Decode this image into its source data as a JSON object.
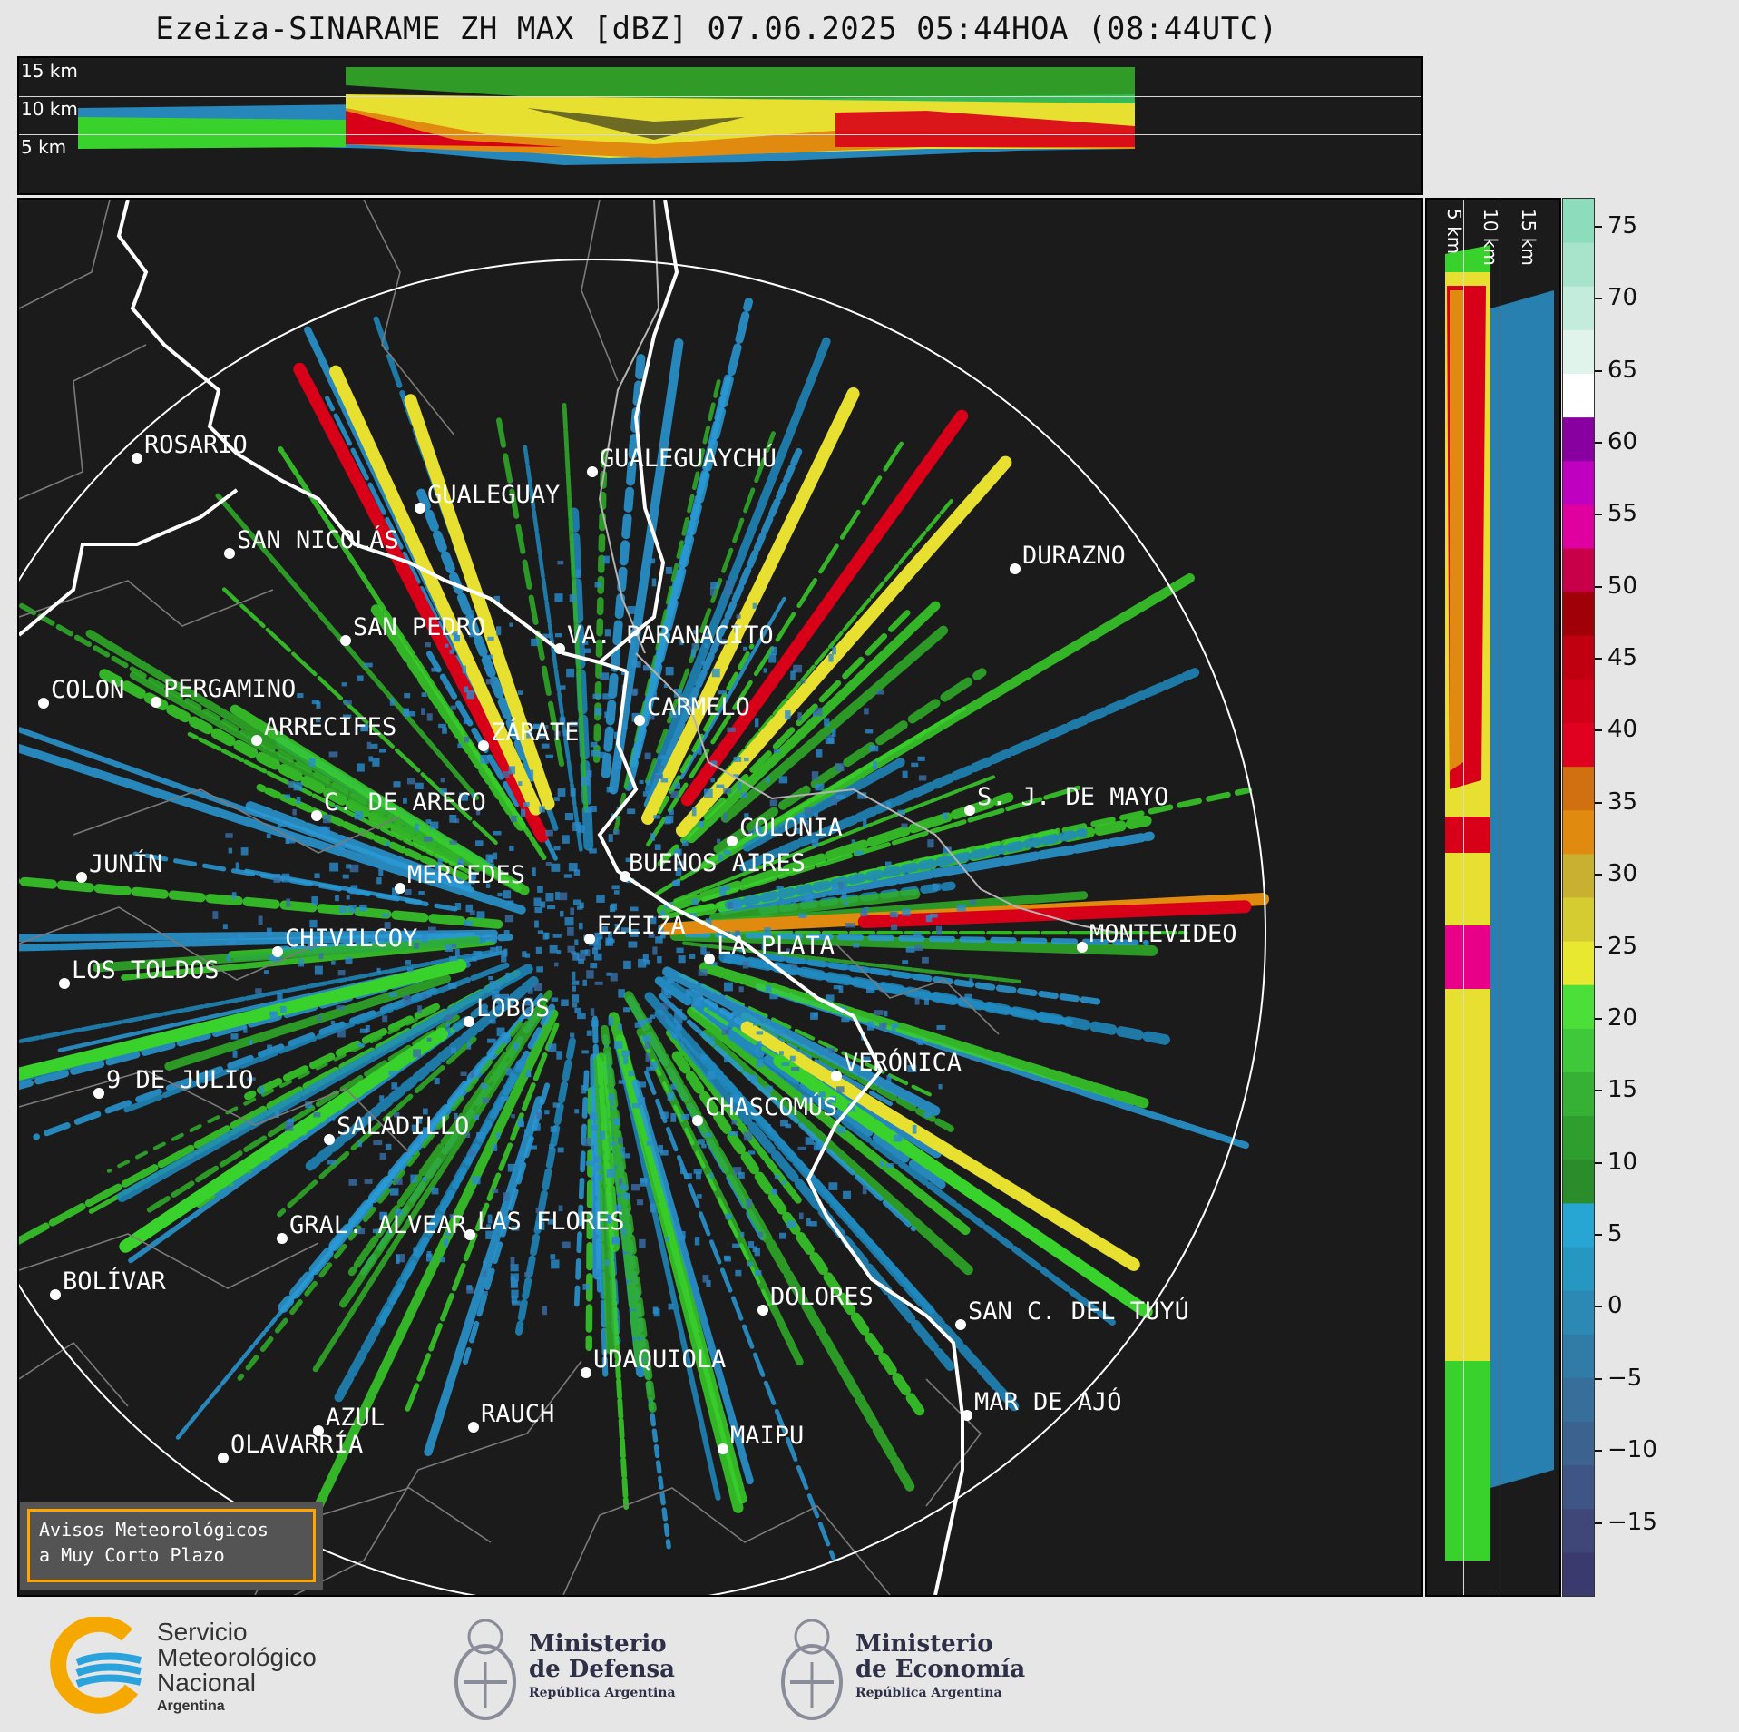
{
  "header": {
    "title": "Ezeiza-SINARAME ZH MAX [dBZ] 07.06.2025 05:44HOA (08:44UTC)"
  },
  "top_panel": {
    "altitude_labels": [
      "15 km",
      "10 km",
      "5 km"
    ]
  },
  "side_panel": {
    "altitude_labels": [
      "5 km",
      "10 km",
      "15 km"
    ]
  },
  "colorbar": {
    "ticks": [
      "75",
      "70",
      "65",
      "60",
      "55",
      "50",
      "45",
      "40",
      "35",
      "30",
      "25",
      "20",
      "15",
      "10",
      "5",
      "0",
      "−5",
      "−10",
      "−15"
    ],
    "range": [
      -20,
      77
    ]
  },
  "map": {
    "cities": [
      {
        "name": "ROSARIO"
      },
      {
        "name": "GUALEGUAYCHÚ"
      },
      {
        "name": "GUALEGUAY"
      },
      {
        "name": "SAN NICOLÁS"
      },
      {
        "name": "DURAZNO"
      },
      {
        "name": "SAN PEDRO"
      },
      {
        "name": "VA. PARANACITO"
      },
      {
        "name": "COLON"
      },
      {
        "name": "PERGAMINO"
      },
      {
        "name": "CARMELO"
      },
      {
        "name": "ARRECIFES"
      },
      {
        "name": "ZÁRATE"
      },
      {
        "name": "S. J. DE MAYO"
      },
      {
        "name": "C. DE ARECO"
      },
      {
        "name": "COLONIA"
      },
      {
        "name": "BUENOS AIRES"
      },
      {
        "name": "JUNÍN"
      },
      {
        "name": "MERCEDES"
      },
      {
        "name": "EZEIZA"
      },
      {
        "name": "MONTEVIDEO"
      },
      {
        "name": "CHIVILCOY"
      },
      {
        "name": "LA PLATA"
      },
      {
        "name": "LOS TOLDOS"
      },
      {
        "name": "LOBOS"
      },
      {
        "name": "VERÓNICA"
      },
      {
        "name": "9 DE JULIO"
      },
      {
        "name": "CHASCOMÚS"
      },
      {
        "name": "SALADILLO"
      },
      {
        "name": "GRAL. ALVEAR"
      },
      {
        "name": "LAS FLORES"
      },
      {
        "name": "BOLÍVAR"
      },
      {
        "name": "DOLORES"
      },
      {
        "name": "SAN C. DEL TUYÚ"
      },
      {
        "name": "UDAQUIOLA"
      },
      {
        "name": "MAR DE AJÓ"
      },
      {
        "name": "AZUL"
      },
      {
        "name": "RAUCH"
      },
      {
        "name": "OLAVARRÍA"
      },
      {
        "name": "MAIPU"
      }
    ]
  },
  "warning_box": {
    "line1": "Avisos Meteorológicos",
    "line2": "a Muy Corto Plazo"
  },
  "footer": {
    "smn": {
      "line1": "Servicio",
      "line2": "Meteorológico",
      "line3": "Nacional",
      "line4": "Argentina"
    },
    "defensa": {
      "title1": "Ministerio",
      "title2": "de Defensa",
      "sub": "República Argentina"
    },
    "economia": {
      "title1": "Ministerio",
      "title2": "de Economía",
      "sub": "República Argentina"
    }
  },
  "colors": {
    "background": "#1b1b1b",
    "green": "#39d12b",
    "blue": "#2a9ad6",
    "yellow": "#e8e030",
    "red": "#d80018",
    "orange": "#e08a10"
  }
}
